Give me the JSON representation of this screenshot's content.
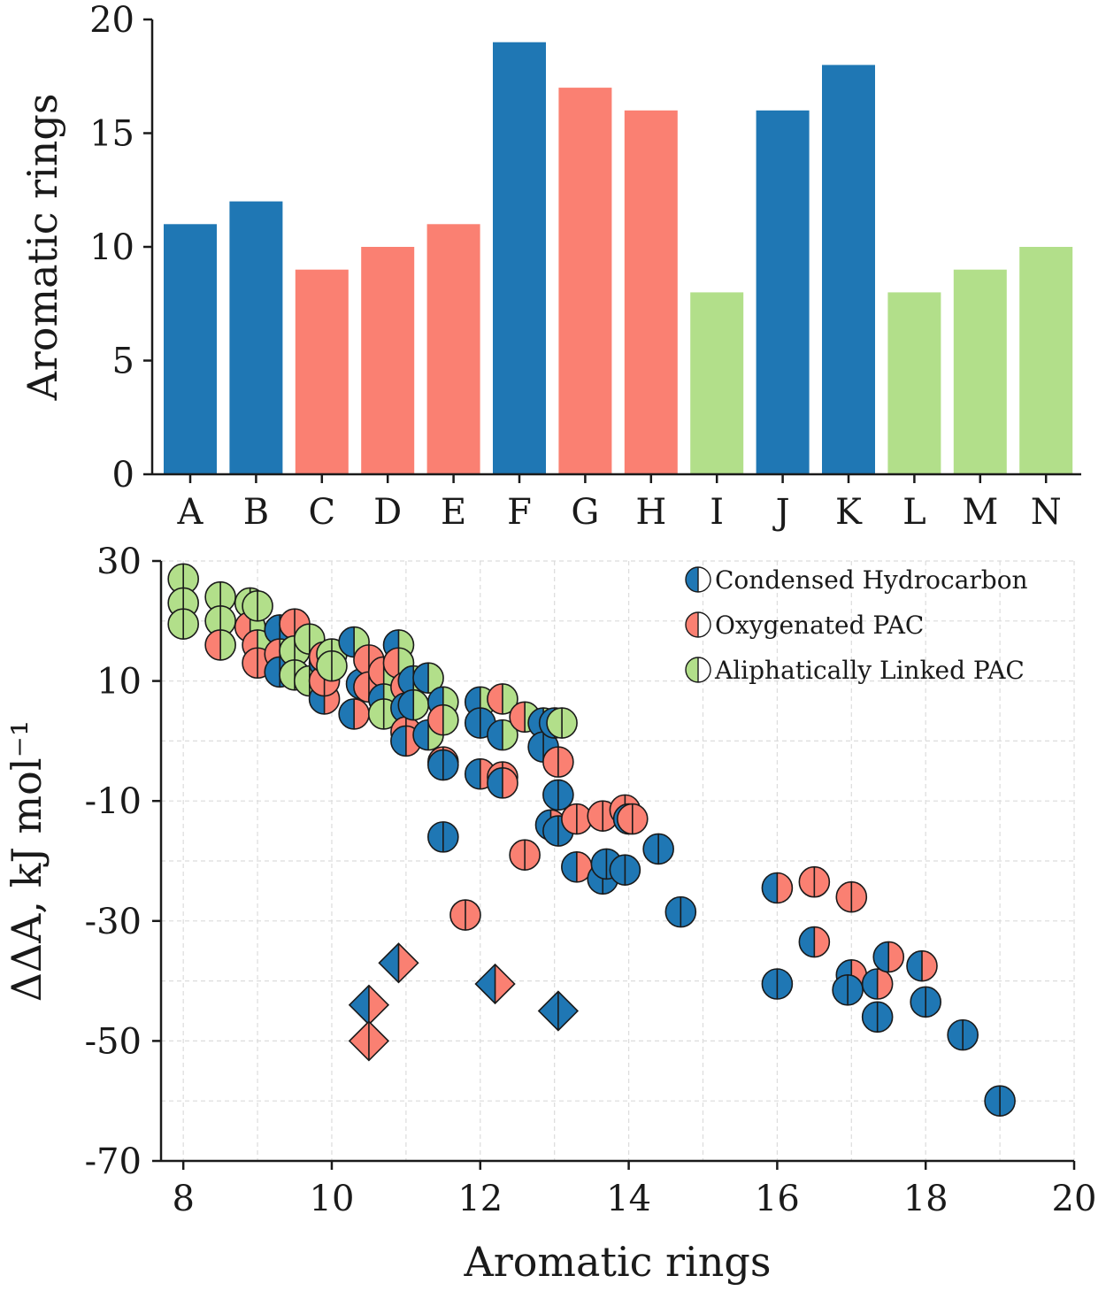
{
  "colors": {
    "condensed": "#1f77b4",
    "oxygenated": "#fa8072",
    "aliphatic": "#b2df8a"
  },
  "chart_data": [
    {
      "type": "bar",
      "categories": [
        "A",
        "B",
        "C",
        "D",
        "E",
        "F",
        "G",
        "H",
        "I",
        "J",
        "K",
        "L",
        "M",
        "N"
      ],
      "values": [
        11,
        12,
        9,
        10,
        11,
        19,
        17,
        16,
        8,
        16,
        18,
        8,
        9,
        10
      ],
      "groups": [
        "condensed",
        "condensed",
        "oxygenated",
        "oxygenated",
        "oxygenated",
        "condensed",
        "oxygenated",
        "oxygenated",
        "aliphatic",
        "condensed",
        "condensed",
        "aliphatic",
        "aliphatic",
        "aliphatic"
      ],
      "ylabel": "Aromatic rings",
      "xlabel": "",
      "ylim": [
        0,
        20
      ],
      "yticks": [
        "0",
        "5",
        "10",
        "15",
        "20"
      ],
      "grid": false
    },
    {
      "type": "scatter",
      "xlabel": "Aromatic rings",
      "ylabel": "ΔΔA, kJ mol⁻¹",
      "xlim": [
        7.7,
        20
      ],
      "ylim": [
        -70,
        30
      ],
      "xticks": [
        "8",
        "10",
        "12",
        "14",
        "16",
        "18",
        "20"
      ],
      "yticks": [
        "30",
        "10",
        "-10",
        "-30",
        "-50",
        "-70"
      ],
      "grid": true,
      "legend_position": "top-right",
      "legend": [
        "Condensed Hydrocarbon",
        "Oxygenated PAC",
        "Aliphatically Linked PAC"
      ],
      "marker_note": "half-filled markers: left half = first group, right half = second group",
      "circles": [
        [
          8,
          27,
          "aliphatic",
          "aliphatic"
        ],
        [
          8,
          23,
          "aliphatic",
          "aliphatic"
        ],
        [
          8,
          19.5,
          "aliphatic",
          "aliphatic"
        ],
        [
          8.5,
          24,
          "aliphatic",
          "aliphatic"
        ],
        [
          8.5,
          20,
          "aliphatic",
          "aliphatic"
        ],
        [
          8.5,
          16,
          "oxygenated",
          "aliphatic"
        ],
        [
          8.9,
          23,
          "aliphatic",
          "aliphatic"
        ],
        [
          8.9,
          19,
          "oxygenated",
          "aliphatic"
        ],
        [
          9,
          16,
          "oxygenated",
          "aliphatic"
        ],
        [
          9,
          13,
          "oxygenated",
          "oxygenated"
        ],
        [
          9,
          22.5,
          "aliphatic",
          "aliphatic"
        ],
        [
          9.3,
          18.5,
          "condensed",
          "condensed"
        ],
        [
          9.3,
          14.5,
          "oxygenated",
          "aliphatic"
        ],
        [
          9.3,
          11.5,
          "condensed",
          "condensed"
        ],
        [
          9.5,
          19.5,
          "oxygenated",
          "oxygenated"
        ],
        [
          9.5,
          15,
          "aliphatic",
          "aliphatic"
        ],
        [
          9.5,
          11,
          "aliphatic",
          "aliphatic"
        ],
        [
          9.7,
          17,
          "aliphatic",
          "aliphatic"
        ],
        [
          9.7,
          10,
          "aliphatic",
          "aliphatic"
        ],
        [
          9.9,
          13,
          "condensed",
          "aliphatic"
        ],
        [
          9.9,
          7,
          "condensed",
          "oxygenated"
        ],
        [
          9.9,
          10,
          "oxygenated",
          "oxygenated"
        ],
        [
          9.9,
          14,
          "oxygenated",
          "aliphatic"
        ],
        [
          10,
          14.5,
          "aliphatic",
          "aliphatic"
        ],
        [
          10,
          12.5,
          "aliphatic",
          "aliphatic"
        ],
        [
          10.3,
          16.5,
          "condensed",
          "aliphatic"
        ],
        [
          10.3,
          4.5,
          "condensed",
          "oxygenated"
        ],
        [
          10.4,
          9.5,
          "condensed",
          "condensed"
        ],
        [
          10.5,
          13.5,
          "oxygenated",
          "oxygenated"
        ],
        [
          10.5,
          9,
          "oxygenated",
          "oxygenated"
        ],
        [
          10.7,
          11.5,
          "oxygenated",
          "aliphatic"
        ],
        [
          10.7,
          7,
          "condensed",
          "aliphatic"
        ],
        [
          10.7,
          4.5,
          "aliphatic",
          "aliphatic"
        ],
        [
          10.9,
          16,
          "condensed",
          "aliphatic"
        ],
        [
          10.9,
          13,
          "oxygenated",
          "aliphatic"
        ],
        [
          11,
          9,
          "oxygenated",
          "oxygenated"
        ],
        [
          11,
          5.5,
          "condensed",
          "condensed"
        ],
        [
          11,
          1.5,
          "oxygenated",
          "oxygenated"
        ],
        [
          11,
          0,
          "condensed",
          "oxygenated"
        ],
        [
          11.1,
          10,
          "condensed",
          "aliphatic"
        ],
        [
          11.1,
          6,
          "condensed",
          "aliphatic"
        ],
        [
          11.3,
          10.5,
          "condensed",
          "aliphatic"
        ],
        [
          11.3,
          1,
          "condensed",
          "aliphatic"
        ],
        [
          11.5,
          6.5,
          "condensed",
          "aliphatic"
        ],
        [
          11.5,
          3.5,
          "oxygenated",
          "aliphatic"
        ],
        [
          11.5,
          -3.5,
          "oxygenated",
          "oxygenated"
        ],
        [
          11.5,
          -4,
          "condensed",
          "condensed"
        ],
        [
          11.5,
          -16,
          "condensed",
          "condensed"
        ],
        [
          11.8,
          -29,
          "oxygenated",
          "oxygenated"
        ],
        [
          12,
          6.5,
          "condensed",
          "aliphatic"
        ],
        [
          12,
          3,
          "condensed",
          "condensed"
        ],
        [
          12,
          -5.5,
          "condensed",
          "oxygenated"
        ],
        [
          12.3,
          7,
          "oxygenated",
          "aliphatic"
        ],
        [
          12.3,
          1,
          "condensed",
          "aliphatic"
        ],
        [
          12.3,
          -6,
          "oxygenated",
          "oxygenated"
        ],
        [
          12.3,
          -7,
          "condensed",
          "oxygenated"
        ],
        [
          12.6,
          4,
          "oxygenated",
          "aliphatic"
        ],
        [
          12.6,
          -19,
          "oxygenated",
          "oxygenated"
        ],
        [
          12.85,
          3,
          "condensed",
          "aliphatic"
        ],
        [
          12.85,
          -1,
          "condensed",
          "condensed"
        ],
        [
          13,
          3,
          "condensed",
          "aliphatic"
        ],
        [
          13.05,
          -3.5,
          "oxygenated",
          "oxygenated"
        ],
        [
          13.05,
          -9,
          "condensed",
          "condensed"
        ],
        [
          13.1,
          3,
          "aliphatic",
          "aliphatic"
        ],
        [
          12.95,
          -14,
          "condensed",
          "oxygenated"
        ],
        [
          13.05,
          -15,
          "condensed",
          "condensed"
        ],
        [
          13.3,
          -13,
          "oxygenated",
          "oxygenated"
        ],
        [
          13.3,
          -21,
          "condensed",
          "oxygenated"
        ],
        [
          13.65,
          -12.5,
          "oxygenated",
          "oxygenated"
        ],
        [
          13.65,
          -23,
          "condensed",
          "condensed"
        ],
        [
          13.7,
          -20.5,
          "condensed",
          "condensed"
        ],
        [
          13.95,
          -11.5,
          "oxygenated",
          "oxygenated"
        ],
        [
          13.95,
          -21.5,
          "condensed",
          "condensed"
        ],
        [
          14,
          -13,
          "condensed",
          "condensed"
        ],
        [
          14.05,
          -13,
          "oxygenated",
          "oxygenated"
        ],
        [
          14.4,
          -18,
          "condensed",
          "condensed"
        ],
        [
          14.7,
          -28.5,
          "condensed",
          "condensed"
        ],
        [
          16,
          -24.5,
          "condensed",
          "oxygenated"
        ],
        [
          16,
          -40.5,
          "condensed",
          "condensed"
        ],
        [
          16.5,
          -23.5,
          "oxygenated",
          "oxygenated"
        ],
        [
          16.5,
          -33.5,
          "condensed",
          "oxygenated"
        ],
        [
          17,
          -26,
          "oxygenated",
          "oxygenated"
        ],
        [
          17,
          -39,
          "condensed",
          "oxygenated"
        ],
        [
          16.95,
          -41.5,
          "condensed",
          "condensed"
        ],
        [
          17.35,
          -40.5,
          "condensed",
          "oxygenated"
        ],
        [
          17.35,
          -46,
          "condensed",
          "condensed"
        ],
        [
          17.5,
          -36,
          "condensed",
          "oxygenated"
        ],
        [
          17.95,
          -37.5,
          "condensed",
          "oxygenated"
        ],
        [
          18,
          -43.5,
          "condensed",
          "condensed"
        ],
        [
          18.5,
          -49,
          "condensed",
          "condensed"
        ],
        [
          19,
          -60,
          "condensed",
          "condensed"
        ]
      ],
      "diamonds": [
        [
          10.9,
          -37,
          "condensed",
          "oxygenated"
        ],
        [
          12.2,
          -40.5,
          "condensed",
          "oxygenated"
        ],
        [
          10.5,
          -44,
          "condensed",
          "oxygenated"
        ],
        [
          10.5,
          -50,
          "oxygenated",
          "oxygenated"
        ],
        [
          13.05,
          -45,
          "condensed",
          "condensed"
        ]
      ]
    }
  ]
}
